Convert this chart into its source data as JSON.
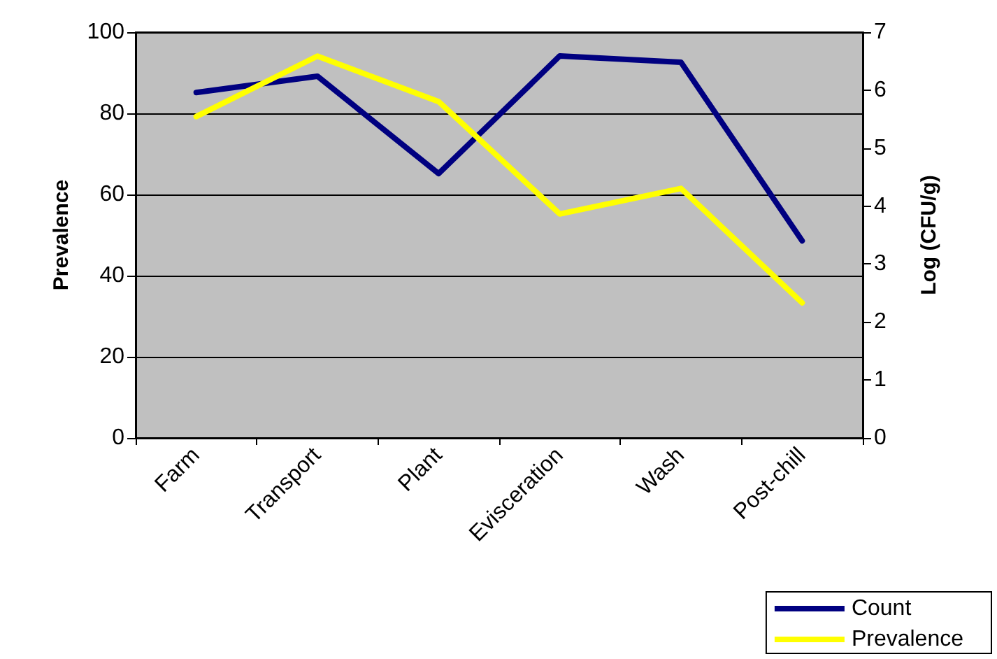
{
  "chart_data": {
    "type": "line",
    "categories": [
      "Farm",
      "Transport",
      "Plant",
      "Evisceration",
      "Wash",
      "Post-chill"
    ],
    "ylabel": "Prevalence",
    "y2label": "Log (CFU/g)",
    "ylim": [
      0,
      100
    ],
    "yticks": [
      0,
      20,
      40,
      60,
      80,
      100
    ],
    "y2lim": [
      0,
      7
    ],
    "y2ticks": [
      0,
      1,
      2,
      3,
      4,
      5,
      6,
      7
    ],
    "series": [
      {
        "name": "Count",
        "color": "#000080",
        "axis": "y2",
        "values": [
          5.96,
          6.24,
          4.56,
          6.59,
          6.48,
          3.4
        ]
      },
      {
        "name": "Prevalence",
        "color": "#ffff00",
        "values": [
          79.2,
          94.1,
          82.9,
          55.2,
          61.5,
          33.3
        ]
      }
    ],
    "grid": "y",
    "legend": "bottom right",
    "marker": "none",
    "line_style": "solid"
  }
}
